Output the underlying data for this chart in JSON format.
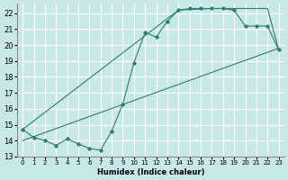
{
  "xlabel": "Humidex (Indice chaleur)",
  "bg_color": "#c8e8e8",
  "grid_color": "#ffffff",
  "line_color": "#2e7d6e",
  "xlim": [
    -0.5,
    23.5
  ],
  "ylim": [
    13,
    22.6
  ],
  "yticks": [
    13,
    14,
    15,
    16,
    17,
    18,
    19,
    20,
    21,
    22
  ],
  "xticks": [
    0,
    1,
    2,
    3,
    4,
    5,
    6,
    7,
    8,
    9,
    10,
    11,
    12,
    13,
    14,
    15,
    16,
    17,
    18,
    19,
    20,
    21,
    22,
    23
  ],
  "curve1_x": [
    0,
    1,
    2,
    3,
    4,
    5,
    6,
    7,
    8,
    9,
    10,
    11,
    12,
    13,
    14,
    15,
    16,
    17,
    18,
    19,
    20,
    21,
    22,
    23
  ],
  "curve1_y": [
    14.7,
    14.2,
    14.0,
    13.7,
    14.1,
    13.8,
    13.5,
    13.4,
    14.6,
    16.3,
    18.9,
    20.8,
    20.5,
    21.5,
    22.2,
    22.3,
    22.3,
    22.3,
    22.3,
    22.2,
    21.2,
    21.2,
    21.2,
    19.7
  ],
  "trend_x": [
    0,
    23
  ],
  "trend_y": [
    14.0,
    19.8
  ],
  "envelope_x": [
    0,
    14,
    17,
    22,
    23
  ],
  "envelope_y": [
    14.7,
    22.2,
    22.3,
    22.3,
    19.7
  ]
}
